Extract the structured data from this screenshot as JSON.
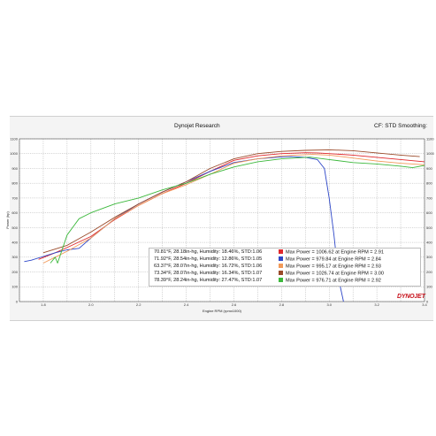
{
  "header": {
    "title": "Dynojet Research",
    "cf": "CF: STD Smoothing:"
  },
  "legend": {
    "rows": [
      {
        "conditions": "70.81°F, 28.18in-hg, Humidity: 18.46%, STD:1.06",
        "result": "Max Power = 1006.62 at Engine RPM = 2.91",
        "color": "#e0282c"
      },
      {
        "conditions": "71.92°F, 28.54in-hg, Humidity: 12.86%, STD:1.05",
        "result": "Max Power = 979.84 at Engine RPM = 2.84",
        "color": "#2e47c8"
      },
      {
        "conditions": "63.37°F, 28.07in-hg, Humidity: 16.72%, STD:1.06",
        "result": "Max Power = 995.17 at Engine RPM = 2.93",
        "color": "#f29a5a"
      },
      {
        "conditions": "73.34°F, 28.07in-hg, Humidity: 16.34%, STD:1.07",
        "result": "Max Power = 1026.74 at Engine RPM = 3.00",
        "color": "#9a4a2a"
      },
      {
        "conditions": "78.39°F, 28.24in-hg, Humidity: 27.47%, STD:1.07",
        "result": "Max Power = 976.71 at Engine RPM = 2.92",
        "color": "#3cb83c"
      }
    ]
  },
  "brand": {
    "text": "DYNOJET",
    "color": "#c8141e"
  },
  "chart_data": {
    "type": "line",
    "title": "Dynojet Research",
    "xlabel": "Engine RPM (rpmx1000)",
    "ylabel": "Power (hp)",
    "xlim": [
      1.7,
      3.4
    ],
    "ylim": [
      0,
      1100
    ],
    "x_ticks": [
      "1.8",
      "2.0",
      "2.2",
      "2.4",
      "2.6",
      "2.8",
      "3.0",
      "3.2",
      "3.4"
    ],
    "y_ticks": [
      "0",
      "100",
      "200",
      "300",
      "400",
      "500",
      "600",
      "700",
      "800",
      "900",
      "1000",
      "1100"
    ],
    "grid": true,
    "series": [
      {
        "color": "#e0282c",
        "x": [
          1.78,
          1.85,
          1.9,
          2.0,
          2.1,
          2.2,
          2.3,
          2.4,
          2.5,
          2.6,
          2.7,
          2.8,
          2.9,
          2.95,
          3.0,
          3.1,
          3.2,
          3.3,
          3.4
        ],
        "y": [
          285,
          330,
          365,
          440,
          555,
          650,
          730,
          800,
          880,
          955,
          985,
          1000,
          1006,
          1005,
          1000,
          990,
          975,
          960,
          945
        ]
      },
      {
        "color": "#2e47c8",
        "x": [
          1.72,
          1.75,
          1.8,
          1.85,
          1.9,
          1.95,
          2.0,
          2.1,
          2.2,
          2.3,
          2.4,
          2.5,
          2.6,
          2.7,
          2.8,
          2.84,
          2.9,
          2.95,
          2.98,
          3.0,
          3.02,
          3.04,
          3.06
        ],
        "y": [
          270,
          280,
          305,
          330,
          350,
          360,
          430,
          560,
          660,
          740,
          810,
          880,
          940,
          965,
          978,
          980,
          975,
          960,
          900,
          700,
          450,
          150,
          0
        ]
      },
      {
        "color": "#f29a5a",
        "x": [
          1.8,
          1.85,
          1.9,
          2.0,
          2.1,
          2.2,
          2.3,
          2.4,
          2.5,
          2.6,
          2.7,
          2.8,
          2.9,
          2.93,
          3.0,
          3.1,
          3.2,
          3.3,
          3.4
        ],
        "y": [
          260,
          300,
          340,
          430,
          560,
          650,
          730,
          790,
          860,
          935,
          965,
          985,
          993,
          995,
          990,
          970,
          950,
          935,
          925
        ]
      },
      {
        "color": "#9a4a2a",
        "x": [
          1.8,
          1.9,
          2.0,
          2.1,
          2.2,
          2.3,
          2.4,
          2.5,
          2.6,
          2.7,
          2.8,
          2.9,
          3.0,
          3.1,
          3.2,
          3.3,
          3.38
        ],
        "y": [
          330,
          380,
          470,
          570,
          660,
          740,
          810,
          900,
          965,
          1000,
          1015,
          1022,
          1026,
          1020,
          1005,
          990,
          980
        ]
      },
      {
        "color": "#3cb83c",
        "x": [
          1.83,
          1.85,
          1.86,
          1.9,
          1.95,
          2.0,
          2.1,
          2.2,
          2.3,
          2.4,
          2.5,
          2.6,
          2.7,
          2.8,
          2.92,
          3.0,
          3.1,
          3.2,
          3.3,
          3.35,
          3.4
        ],
        "y": [
          260,
          300,
          260,
          450,
          560,
          600,
          660,
          700,
          755,
          800,
          860,
          910,
          945,
          965,
          976,
          960,
          940,
          930,
          915,
          905,
          920
        ]
      }
    ]
  }
}
